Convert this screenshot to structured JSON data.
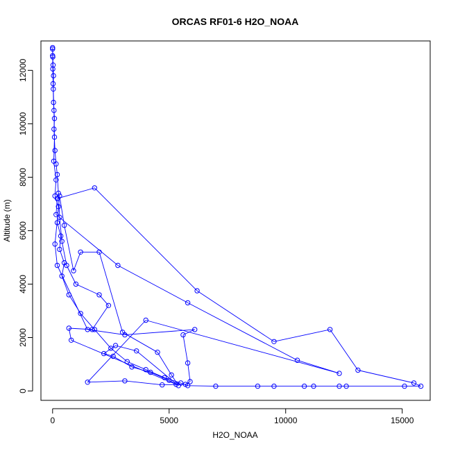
{
  "chart_data": {
    "type": "line",
    "title": "ORCAS RF01-6 H2O_NOAA",
    "xlabel": "H2O_NOAA",
    "ylabel": "Altitude (m)",
    "xlim": [
      -500,
      16200
    ],
    "ylim": [
      -350,
      13100
    ],
    "xticks": [
      0,
      5000,
      10000,
      15000
    ],
    "yticks": [
      0,
      2000,
      4000,
      6000,
      8000,
      10000,
      12000
    ],
    "grid": false,
    "colors": {
      "series": "#0000ff",
      "axis": "#000000"
    },
    "series": [
      {
        "marker": "open-circle",
        "values": [
          [
            0,
            12850
          ],
          [
            10,
            12500
          ],
          [
            20,
            12200
          ],
          [
            40,
            11800
          ],
          [
            30,
            11300
          ],
          [
            60,
            10500
          ],
          [
            80,
            9500
          ],
          [
            50,
            8600
          ],
          [
            150,
            7900
          ],
          [
            100,
            7300
          ],
          [
            250,
            6900
          ],
          [
            200,
            6300
          ],
          [
            350,
            5800
          ],
          [
            300,
            5300
          ],
          [
            500,
            4800
          ],
          [
            400,
            4300
          ],
          [
            700,
            3600
          ],
          [
            1200,
            2900
          ],
          [
            1800,
            2300
          ],
          [
            2500,
            1600
          ],
          [
            3200,
            1100
          ],
          [
            4000,
            800
          ],
          [
            4800,
            500
          ],
          [
            5500,
            300
          ],
          [
            5800,
            200
          ],
          [
            7000,
            180
          ],
          [
            8800,
            180
          ],
          [
            9500,
            180
          ],
          [
            10800,
            180
          ],
          [
            11200,
            180
          ],
          [
            12300,
            180
          ],
          [
            12600,
            180
          ],
          [
            15100,
            180
          ],
          [
            15800,
            180
          ],
          [
            15500,
            300
          ],
          [
            13100,
            780
          ],
          [
            11900,
            2300
          ],
          [
            9500,
            1850
          ],
          [
            6200,
            3750
          ],
          [
            1800,
            7600
          ],
          [
            200,
            7200
          ],
          [
            150,
            6600
          ],
          [
            2800,
            4700
          ],
          [
            5800,
            3300
          ],
          [
            10500,
            1150
          ],
          [
            12300,
            660
          ],
          [
            4000,
            2650
          ],
          [
            1500,
            330
          ],
          [
            3100,
            380
          ],
          [
            4700,
            230
          ],
          [
            5700,
            250
          ],
          [
            5900,
            350
          ],
          [
            5800,
            1050
          ],
          [
            5600,
            2100
          ],
          [
            6100,
            2300
          ],
          [
            3100,
            2100
          ],
          [
            1500,
            2300
          ],
          [
            200,
            4700
          ],
          [
            100,
            5500
          ],
          [
            300,
            7300
          ],
          [
            500,
            6200
          ],
          [
            900,
            4500
          ],
          [
            1200,
            5200
          ],
          [
            2000,
            5200
          ],
          [
            3000,
            2200
          ],
          [
            4500,
            1450
          ],
          [
            5100,
            600
          ],
          [
            5400,
            200
          ],
          [
            3600,
            1500
          ],
          [
            2700,
            1700
          ],
          [
            2200,
            1400
          ],
          [
            2600,
            1300
          ],
          [
            3400,
            900
          ],
          [
            4200,
            700
          ],
          [
            5000,
            400
          ],
          [
            5300,
            250
          ],
          [
            800,
            1900
          ],
          [
            700,
            2350
          ],
          [
            1700,
            2300
          ],
          [
            2400,
            3200
          ],
          [
            2000,
            3600
          ],
          [
            1000,
            4000
          ],
          [
            600,
            4700
          ],
          [
            400,
            5600
          ],
          [
            300,
            6500
          ],
          [
            250,
            7400
          ],
          [
            200,
            8100
          ],
          [
            150,
            8500
          ],
          [
            100,
            9000
          ],
          [
            60,
            9800
          ],
          [
            80,
            10200
          ],
          [
            40,
            10800
          ],
          [
            20,
            11500
          ],
          [
            10,
            12050
          ],
          [
            0,
            12550
          ],
          [
            0,
            12800
          ]
        ]
      }
    ]
  }
}
